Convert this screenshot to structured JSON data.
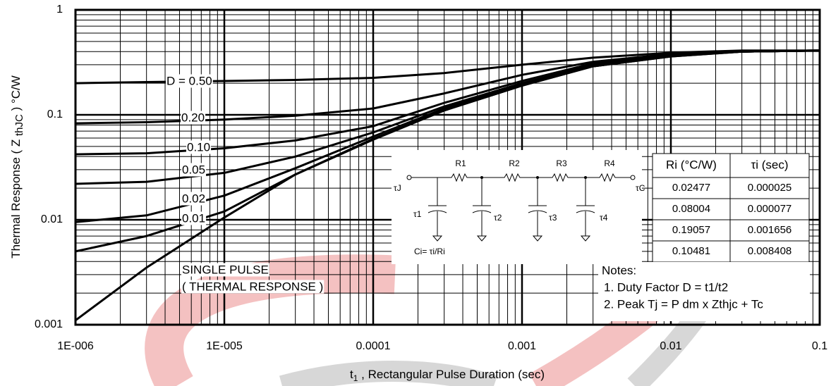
{
  "chart_data": {
    "type": "line",
    "x_log": true,
    "y_log": true,
    "grid": true,
    "x_label": {
      "main": "t",
      "sub": "1",
      "rest": " , Rectangular Pulse Duration (sec)"
    },
    "y_label": {
      "main": "Thermal Response ( Z ",
      "sub": "thJC",
      "rest": " ) °C/W"
    },
    "xlim": [
      1e-06,
      0.1
    ],
    "ylim": [
      0.001,
      1
    ],
    "xticks": [
      {
        "value": 1e-06,
        "label": "1E-006"
      },
      {
        "value": 1e-05,
        "label": "1E-005"
      },
      0.0001,
      0.001,
      0.01,
      0.1
    ],
    "yticks": [
      0.001,
      0.01,
      0.1,
      1
    ],
    "x": [
      1e-06,
      3e-06,
      1e-05,
      3e-05,
      0.0001,
      0.0003,
      0.001,
      0.003,
      0.01,
      0.03,
      0.1
    ],
    "series": [
      {
        "name": "D = 0.50",
        "color": "#000000",
        "values": [
          0.2,
          0.205,
          0.21,
          0.215,
          0.225,
          0.25,
          0.3,
          0.35,
          0.39,
          0.41,
          0.41
        ]
      },
      {
        "name": "0.20",
        "color": "#000000",
        "values": [
          0.083,
          0.085,
          0.09,
          0.098,
          0.115,
          0.16,
          0.24,
          0.32,
          0.38,
          0.4,
          0.41
        ]
      },
      {
        "name": "0.10",
        "color": "#000000",
        "values": [
          0.042,
          0.043,
          0.048,
          0.057,
          0.078,
          0.13,
          0.21,
          0.31,
          0.37,
          0.4,
          0.41
        ]
      },
      {
        "name": "0.05",
        "color": "#000000",
        "values": [
          0.022,
          0.023,
          0.028,
          0.04,
          0.068,
          0.12,
          0.2,
          0.3,
          0.37,
          0.4,
          0.41
        ]
      },
      {
        "name": "0.02",
        "color": "#000000",
        "values": [
          0.0095,
          0.011,
          0.017,
          0.031,
          0.062,
          0.115,
          0.195,
          0.29,
          0.365,
          0.4,
          0.41
        ]
      },
      {
        "name": "0.01",
        "color": "#000000",
        "values": [
          0.005,
          0.007,
          0.012,
          0.027,
          0.059,
          0.11,
          0.19,
          0.29,
          0.36,
          0.4,
          0.41
        ]
      },
      {
        "name": "SINGLE PULSE",
        "color": "#000000",
        "values": [
          0.0011,
          0.0035,
          0.0105,
          0.027,
          0.058,
          0.11,
          0.19,
          0.29,
          0.36,
          0.4,
          0.41
        ]
      }
    ],
    "annotations": [
      "( THERMAL RESPONSE )"
    ]
  },
  "circuit": {
    "resistors": [
      "R1",
      "R2",
      "R3",
      "R4"
    ],
    "node_in": "τJ",
    "node_out": "τC",
    "capacitors": [
      "τ1",
      "τ2",
      "τ3",
      "τ4"
    ],
    "formula": "Ci= τi/Ri"
  },
  "table": {
    "header": [
      "Ri (°C/W)",
      "τi (sec)"
    ],
    "rows": [
      [
        "0.02477",
        "0.000025"
      ],
      [
        "0.08004",
        "0.000077"
      ],
      [
        "0.19057",
        "0.001656"
      ],
      [
        "0.10481",
        "0.008408"
      ]
    ]
  },
  "notes": {
    "title": "Notes:",
    "items": [
      "1. Duty Factor D = t1/t2",
      "2. Peak Tj = P dm x Zthjc + Tc"
    ]
  }
}
